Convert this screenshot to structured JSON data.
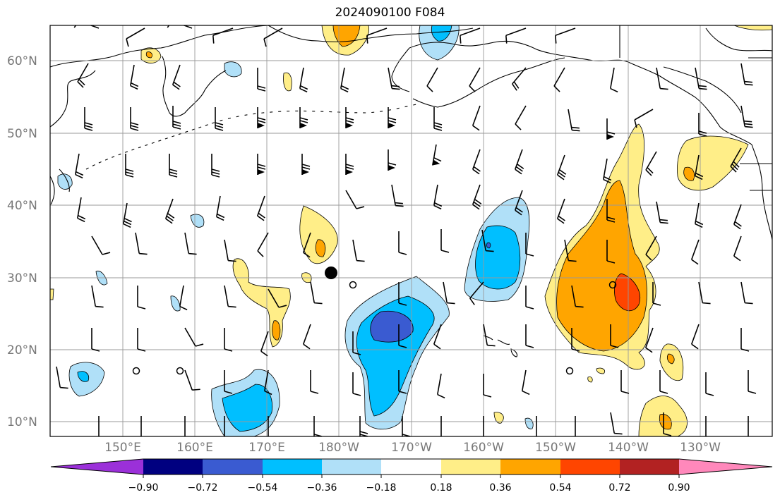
{
  "title": "2024090100 F084",
  "lat_labels": [
    "60°N",
    "50°N",
    "40°N",
    "30°N",
    "20°N",
    "10°N"
  ],
  "lon_labels": [
    "150°E",
    "160°E",
    "170°E",
    "180°W",
    "170°W",
    "160°W",
    "150°W",
    "140°W",
    "130°W"
  ],
  "colorbar": {
    "labels": [
      "−0.90",
      "−0.72",
      "−0.54",
      "−0.36",
      "−0.18",
      "0.18",
      "0.36",
      "0.54",
      "0.72",
      "0.90"
    ],
    "colors": [
      "#9b30d9",
      "#000080",
      "#3a5bd1",
      "#00bfff",
      "#b0e0f8",
      "#ffffff",
      "#ffee88",
      "#ffa500",
      "#ff4500",
      "#b22222",
      "#ff88bb"
    ]
  },
  "colors": {
    "land_line": "#000000",
    "grid": "#999999",
    "axis_label": "#777777"
  },
  "markers": {
    "storm_center": "filled-black-circle",
    "calm_wind": "open-circle"
  }
}
